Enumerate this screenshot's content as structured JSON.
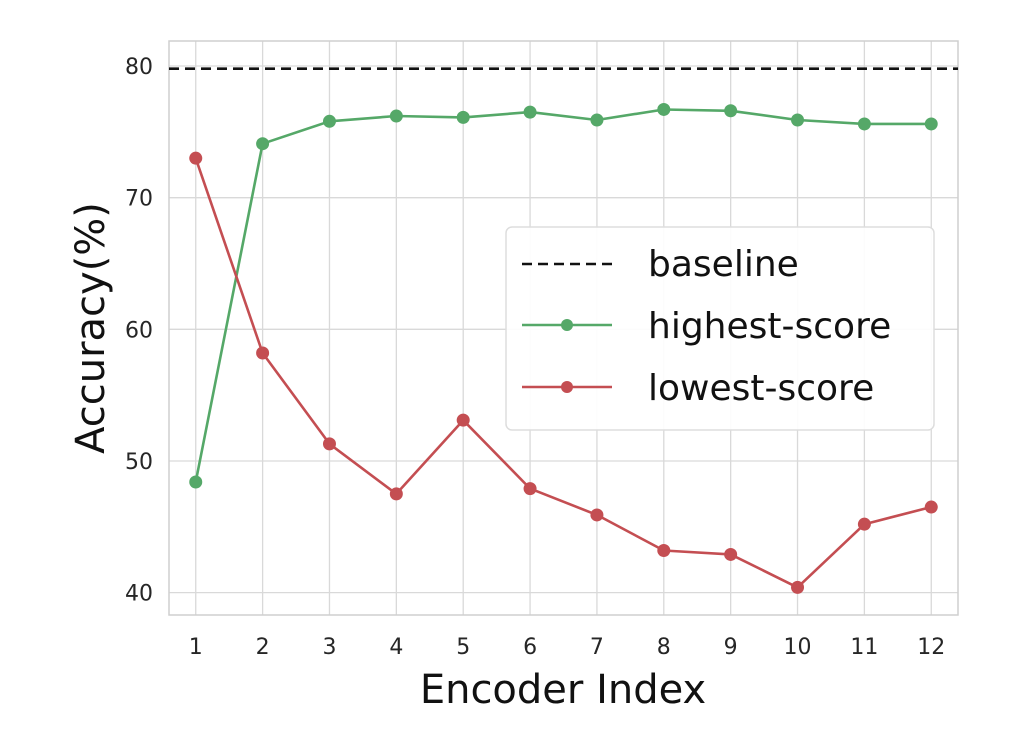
{
  "chart_data": {
    "type": "line",
    "title": "",
    "xlabel": "Encoder Index",
    "ylabel": "Accuracy(%)",
    "x": [
      1,
      2,
      3,
      4,
      5,
      6,
      7,
      8,
      9,
      10,
      11,
      12
    ],
    "x_tick_labels": [
      "1",
      "2",
      "3",
      "4",
      "5",
      "6",
      "7",
      "8",
      "9",
      "10",
      "11",
      "12"
    ],
    "y_ticks": [
      40,
      50,
      60,
      70,
      80
    ],
    "y_tick_labels": [
      "40",
      "50",
      "60",
      "70",
      "80"
    ],
    "xlim": [
      0.6,
      12.4
    ],
    "ylim": [
      38.3,
      81.9
    ],
    "grid": true,
    "legend_position": "center-right",
    "series": [
      {
        "name": "baseline",
        "style": "dashed",
        "color": "#111111",
        "constant": 79.8
      },
      {
        "name": "highest-score",
        "style": "line-marker",
        "color": "#55a868",
        "values": [
          48.4,
          74.1,
          75.8,
          76.2,
          76.1,
          76.5,
          75.9,
          76.7,
          76.6,
          75.9,
          75.6,
          75.6
        ]
      },
      {
        "name": "lowest-score",
        "style": "line-marker",
        "color": "#c44e52",
        "values": [
          73.0,
          58.2,
          51.3,
          47.5,
          53.1,
          47.9,
          45.9,
          43.2,
          42.9,
          40.4,
          45.2,
          46.5
        ]
      }
    ]
  }
}
